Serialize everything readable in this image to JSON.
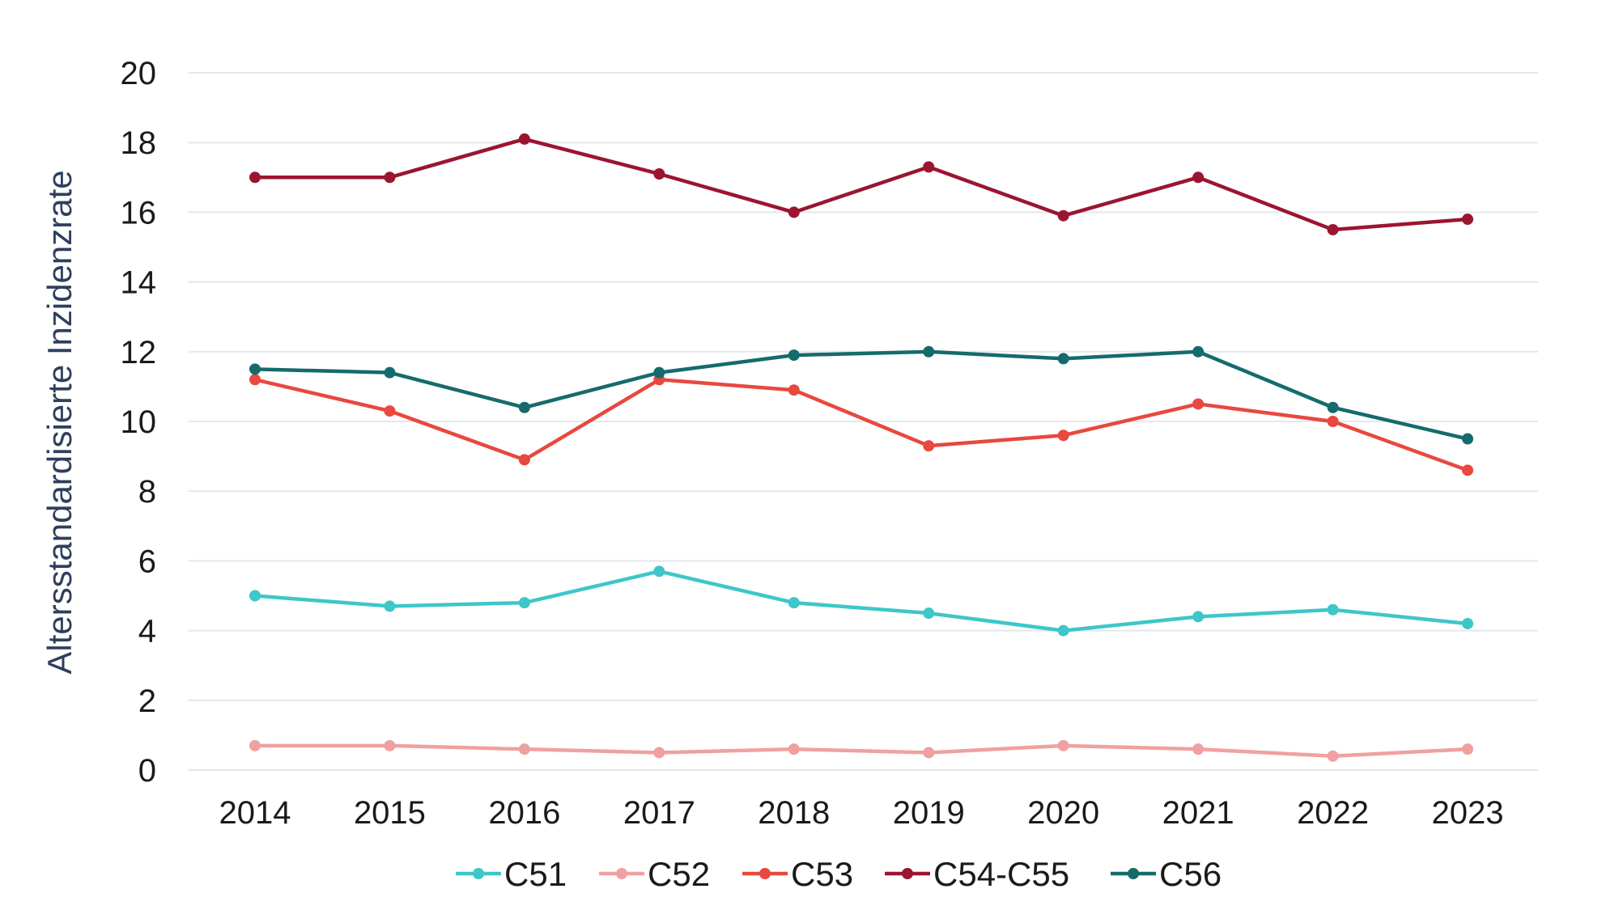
{
  "chart_data": {
    "type": "line",
    "title": "",
    "xlabel": "",
    "ylabel": "Altersstandardisierte Inzidenzrate",
    "categories": [
      "2014",
      "2015",
      "2016",
      "2017",
      "2018",
      "2019",
      "2020",
      "2021",
      "2022",
      "2023"
    ],
    "ylim": [
      0,
      20
    ],
    "yticks": [
      0,
      2,
      4,
      6,
      8,
      10,
      12,
      14,
      16,
      18,
      20
    ],
    "grid": true,
    "legend_position": "bottom",
    "series": [
      {
        "name": "C51",
        "color": "#3ec6c8",
        "values": [
          5.0,
          4.7,
          4.8,
          5.7,
          4.8,
          4.5,
          4.0,
          4.4,
          4.6,
          4.2
        ]
      },
      {
        "name": "C52",
        "color": "#f0a0a0",
        "values": [
          0.7,
          0.7,
          0.6,
          0.5,
          0.6,
          0.5,
          0.7,
          0.6,
          0.4,
          0.6
        ]
      },
      {
        "name": "C53",
        "color": "#e8483f",
        "values": [
          11.2,
          10.3,
          8.9,
          11.2,
          10.9,
          9.3,
          9.6,
          10.5,
          10.0,
          8.6
        ]
      },
      {
        "name": "C54-C55",
        "color": "#9b1530",
        "values": [
          17.0,
          17.0,
          18.1,
          17.1,
          16.0,
          17.3,
          15.9,
          17.0,
          15.5,
          15.8
        ]
      },
      {
        "name": "C56",
        "color": "#156b6b",
        "values": [
          11.5,
          11.4,
          10.4,
          11.4,
          11.9,
          12.0,
          11.8,
          12.0,
          10.4,
          9.5
        ]
      }
    ]
  }
}
